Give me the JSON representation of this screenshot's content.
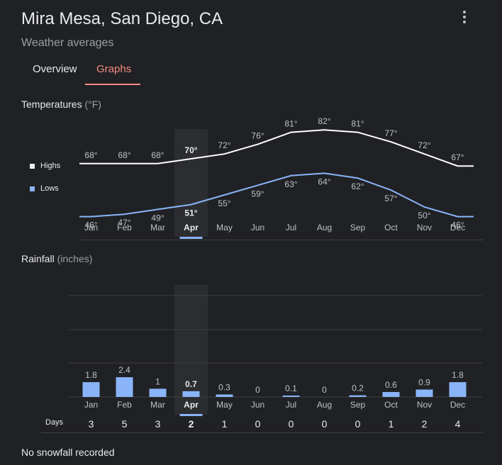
{
  "header": {
    "title": "Mira Mesa, San Diego, CA",
    "subtitle": "Weather averages",
    "menu_icon": "more-vert-icon"
  },
  "tabs": [
    {
      "label": "Overview",
      "selected": false
    },
    {
      "label": "Graphs",
      "selected": true
    }
  ],
  "colors": {
    "accent": "#f28b82",
    "highs": "#ffffff",
    "lows": "#8ab4f8",
    "bars": "#8ab4f8",
    "background": "#202124"
  },
  "selected_month": "Apr",
  "temperatures": {
    "title": "Temperatures",
    "unit": "(°F)",
    "legend": {
      "highs": "Highs",
      "lows": "Lows"
    }
  },
  "rainfall": {
    "title": "Rainfall",
    "unit": "(inches)",
    "days_label": "Days"
  },
  "footer": {
    "snowfall_text": "No snowfall recorded"
  },
  "chart_data": [
    {
      "type": "line",
      "categories": [
        "Jan",
        "Feb",
        "Mar",
        "Apr",
        "May",
        "Jun",
        "Jul",
        "Aug",
        "Sep",
        "Oct",
        "Nov",
        "Dec"
      ],
      "series": [
        {
          "name": "Highs",
          "values": [
            68,
            68,
            68,
            70,
            72,
            76,
            81,
            82,
            81,
            77,
            72,
            67
          ]
        },
        {
          "name": "Lows",
          "values": [
            46,
            47,
            49,
            51,
            55,
            59,
            63,
            64,
            62,
            57,
            50,
            46
          ]
        }
      ],
      "value_suffix": "°",
      "legend": "left"
    },
    {
      "type": "bar",
      "categories": [
        "Jan",
        "Feb",
        "Mar",
        "Apr",
        "May",
        "Jun",
        "Jul",
        "Aug",
        "Sep",
        "Oct",
        "Nov",
        "Dec"
      ],
      "values": [
        1.8,
        2.4,
        1,
        0.7,
        0.3,
        0,
        0.1,
        0,
        0.2,
        0.6,
        0.9,
        1.8
      ],
      "value_labels": [
        "1.8",
        "2.4",
        "1",
        "0.7",
        "0.3",
        "0",
        "0.1",
        "0",
        "0.2",
        "0.6",
        "0.9",
        "1.8"
      ],
      "days": [
        3,
        5,
        3,
        2,
        1,
        0,
        0,
        0,
        0,
        1,
        2,
        4
      ],
      "grid": true
    }
  ]
}
